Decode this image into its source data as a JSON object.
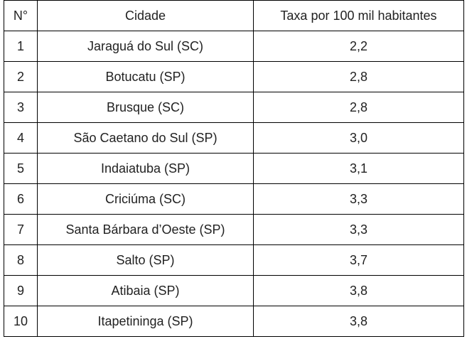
{
  "table": {
    "header": [
      "N°",
      "Cidade",
      "Taxa por 100 mil habitantes"
    ],
    "rows": [
      [
        1,
        "Jaraguá do Sul (SC)",
        "2,2"
      ],
      [
        2,
        "Botucatu (SP)",
        "2,8"
      ],
      [
        3,
        "Brusque (SC)",
        "2,8"
      ],
      [
        4,
        "São Caetano do Sul (SP)",
        "3,0"
      ],
      [
        5,
        "Indaiatuba (SP)",
        "3,1"
      ],
      [
        6,
        "Criciúma (SC)",
        "3,3"
      ],
      [
        7,
        "Santa Bárbara d’Oeste (SP)",
        "3,3"
      ],
      [
        8,
        "Salto (SP)",
        "3,7"
      ],
      [
        9,
        "Atibaia (SP)",
        "3,8"
      ],
      [
        10,
        "Itapetininga (SP)",
        "3,8"
      ]
    ]
  }
}
